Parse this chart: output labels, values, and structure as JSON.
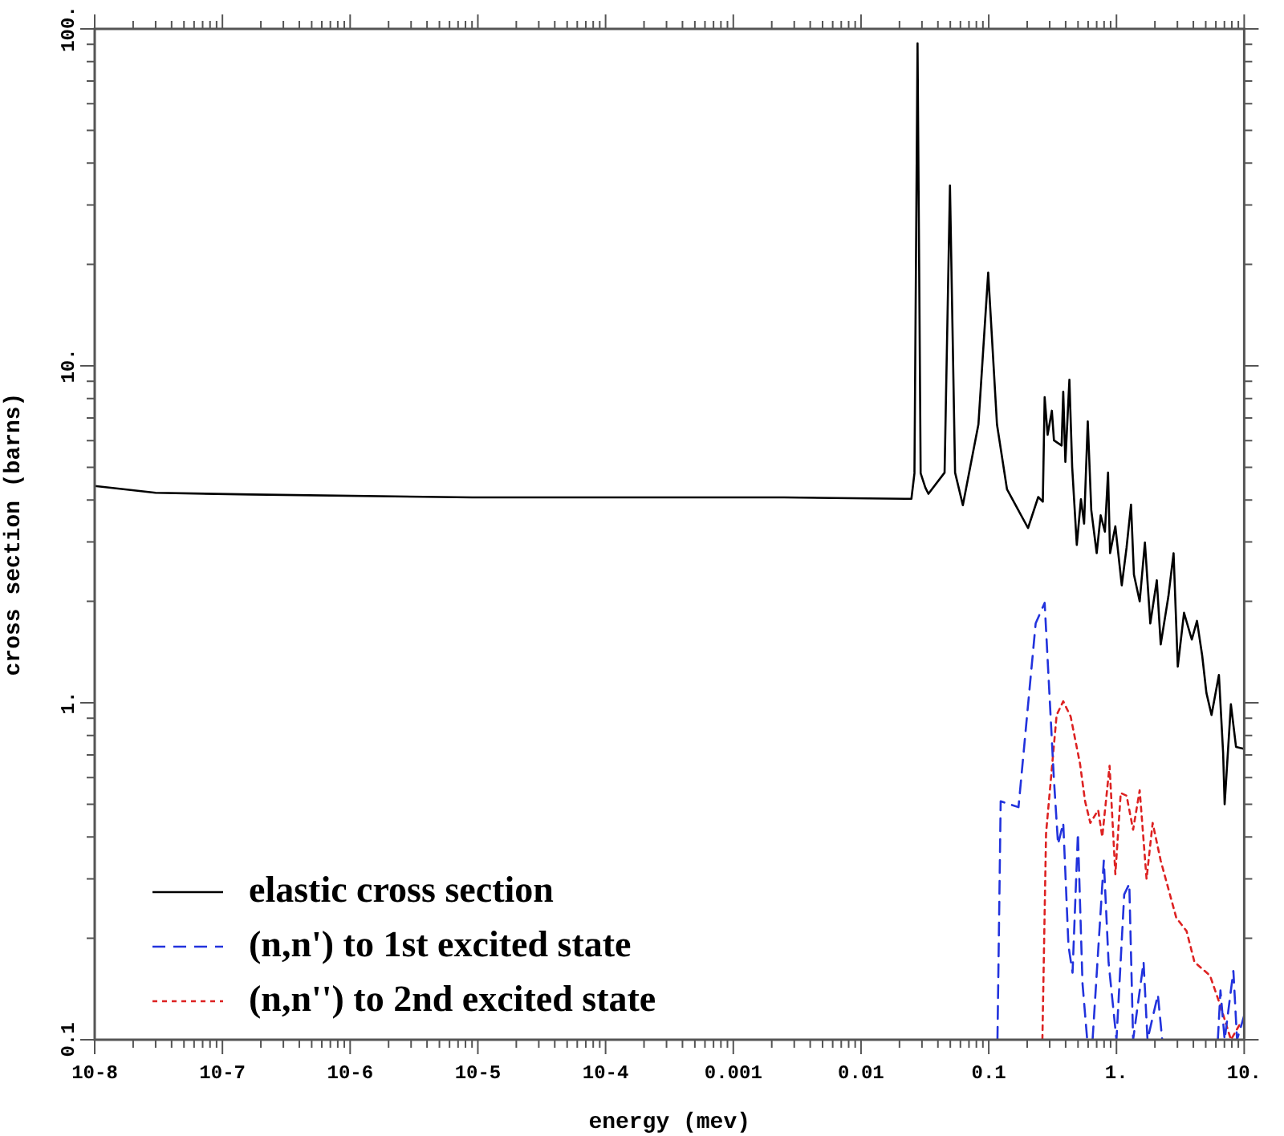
{
  "chart_data": {
    "type": "line",
    "xlabel": "energy (mev)",
    "ylabel": "cross section (barns)",
    "log": "xy",
    "grid": false,
    "legend": "bottom left",
    "marker": "none",
    "xlim": [
      1e-08,
      10
    ],
    "ylim": [
      0.1,
      100
    ],
    "xticks": [
      {
        "value": 1e-08,
        "label": "10-8"
      },
      {
        "value": 2e-08,
        "label": null
      },
      {
        "value": 3e-08,
        "label": null
      },
      {
        "value": 4e-08,
        "label": null
      },
      {
        "value": 5e-08,
        "label": null
      },
      {
        "value": 6e-08,
        "label": null
      },
      {
        "value": 7e-08,
        "label": null
      },
      {
        "value": 8e-08,
        "label": null
      },
      {
        "value": 9e-08,
        "label": null
      },
      {
        "value": 1e-07,
        "label": "10-7"
      },
      {
        "value": 2e-07,
        "label": null
      },
      {
        "value": 3e-07,
        "label": null
      },
      {
        "value": 4e-07,
        "label": null
      },
      {
        "value": 5e-07,
        "label": null
      },
      {
        "value": 6e-07,
        "label": null
      },
      {
        "value": 7e-07,
        "label": null
      },
      {
        "value": 8e-07,
        "label": null
      },
      {
        "value": 9e-07,
        "label": null
      },
      {
        "value": 1e-06,
        "label": "10-6"
      },
      {
        "value": 2e-06,
        "label": null
      },
      {
        "value": 3e-06,
        "label": null
      },
      {
        "value": 4e-06,
        "label": null
      },
      {
        "value": 5e-06,
        "label": null
      },
      {
        "value": 6e-06,
        "label": null
      },
      {
        "value": 7e-06,
        "label": null
      },
      {
        "value": 8e-06,
        "label": null
      },
      {
        "value": 9e-06,
        "label": null
      },
      {
        "value": 1e-05,
        "label": "10-5"
      },
      {
        "value": 2e-05,
        "label": null
      },
      {
        "value": 3e-05,
        "label": null
      },
      {
        "value": 4e-05,
        "label": null
      },
      {
        "value": 5e-05,
        "label": null
      },
      {
        "value": 6e-05,
        "label": null
      },
      {
        "value": 7e-05,
        "label": null
      },
      {
        "value": 8e-05,
        "label": null
      },
      {
        "value": 9e-05,
        "label": null
      },
      {
        "value": 0.0001,
        "label": "10-4"
      },
      {
        "value": 0.0002,
        "label": null
      },
      {
        "value": 0.0003,
        "label": null
      },
      {
        "value": 0.0004,
        "label": null
      },
      {
        "value": 0.0005,
        "label": null
      },
      {
        "value": 0.0006,
        "label": null
      },
      {
        "value": 0.0007,
        "label": null
      },
      {
        "value": 0.0008,
        "label": null
      },
      {
        "value": 0.0009,
        "label": null
      },
      {
        "value": 0.001,
        "label": "0.001"
      },
      {
        "value": 0.002,
        "label": null
      },
      {
        "value": 0.003,
        "label": null
      },
      {
        "value": 0.004,
        "label": null
      },
      {
        "value": 0.005,
        "label": null
      },
      {
        "value": 0.006,
        "label": null
      },
      {
        "value": 0.007,
        "label": null
      },
      {
        "value": 0.008,
        "label": null
      },
      {
        "value": 0.009,
        "label": null
      },
      {
        "value": 0.01,
        "label": "0.01"
      },
      {
        "value": 0.02,
        "label": null
      },
      {
        "value": 0.03,
        "label": null
      },
      {
        "value": 0.04,
        "label": null
      },
      {
        "value": 0.05,
        "label": null
      },
      {
        "value": 0.06,
        "label": null
      },
      {
        "value": 0.07,
        "label": null
      },
      {
        "value": 0.08,
        "label": null
      },
      {
        "value": 0.09,
        "label": null
      },
      {
        "value": 0.1,
        "label": "0.1"
      },
      {
        "value": 0.2,
        "label": null
      },
      {
        "value": 0.3,
        "label": null
      },
      {
        "value": 0.4,
        "label": null
      },
      {
        "value": 0.5,
        "label": null
      },
      {
        "value": 0.6,
        "label": null
      },
      {
        "value": 0.7,
        "label": null
      },
      {
        "value": 0.8,
        "label": null
      },
      {
        "value": 0.9,
        "label": null
      },
      {
        "value": 1,
        "label": "1."
      },
      {
        "value": 2,
        "label": null
      },
      {
        "value": 3,
        "label": null
      },
      {
        "value": 4,
        "label": null
      },
      {
        "value": 5,
        "label": null
      },
      {
        "value": 6,
        "label": null
      },
      {
        "value": 7,
        "label": null
      },
      {
        "value": 8,
        "label": null
      },
      {
        "value": 9,
        "label": null
      },
      {
        "value": 10,
        "label": "10."
      }
    ],
    "yticks": [
      {
        "value": 0.1,
        "label": "0.1"
      },
      {
        "value": 0.2,
        "label": null
      },
      {
        "value": 0.3,
        "label": null
      },
      {
        "value": 0.4,
        "label": null
      },
      {
        "value": 0.5,
        "label": null
      },
      {
        "value": 0.6,
        "label": null
      },
      {
        "value": 0.7,
        "label": null
      },
      {
        "value": 0.8,
        "label": null
      },
      {
        "value": 0.9,
        "label": null
      },
      {
        "value": 1,
        "label": "1."
      },
      {
        "value": 2,
        "label": null
      },
      {
        "value": 3,
        "label": null
      },
      {
        "value": 4,
        "label": null
      },
      {
        "value": 5,
        "label": null
      },
      {
        "value": 6,
        "label": null
      },
      {
        "value": 7,
        "label": null
      },
      {
        "value": 8,
        "label": null
      },
      {
        "value": 9,
        "label": null
      },
      {
        "value": 10,
        "label": "10."
      },
      {
        "value": 20,
        "label": null
      },
      {
        "value": 30,
        "label": null
      },
      {
        "value": 40,
        "label": null
      },
      {
        "value": 50,
        "label": null
      },
      {
        "value": 60,
        "label": null
      },
      {
        "value": 70,
        "label": null
      },
      {
        "value": 80,
        "label": null
      },
      {
        "value": 90,
        "label": null
      },
      {
        "value": 100,
        "label": "100."
      }
    ],
    "series": [
      {
        "name": "elastic cross section",
        "color": "#000000",
        "line_style": "solid",
        "x": [
          1e-08,
          3e-08,
          1.7e-07,
          9e-06,
          0.0025,
          0.0221,
          0.0248,
          0.0262,
          0.0277,
          0.0293,
          0.0319,
          0.0337,
          0.0451,
          0.0497,
          0.0545,
          0.0627,
          0.083,
          0.099,
          0.116,
          0.139,
          0.203,
          0.244,
          0.265,
          0.274,
          0.289,
          0.312,
          0.324,
          0.372,
          0.383,
          0.398,
          0.428,
          0.45,
          0.489,
          0.527,
          0.558,
          0.596,
          0.635,
          0.7,
          0.752,
          0.812,
          0.859,
          0.891,
          0.98,
          1.1,
          1.2,
          1.3,
          1.37,
          1.52,
          1.67,
          1.84,
          2.07,
          2.22,
          2.55,
          2.8,
          3.02,
          3.38,
          3.89,
          4.27,
          4.69,
          5.06,
          5.55,
          6.34,
          6.84,
          7.03,
          7.87,
          8.63,
          10
        ],
        "values": [
          4.4,
          4.2,
          4.15,
          4.07,
          4.07,
          4.03,
          4.03,
          4.8,
          90.6,
          4.8,
          4.35,
          4.17,
          4.82,
          34.3,
          4.82,
          3.86,
          6.7,
          18.9,
          6.7,
          4.3,
          3.3,
          4.08,
          3.95,
          8.07,
          6.24,
          7.36,
          6.01,
          5.8,
          8.38,
          5.19,
          9.09,
          5.01,
          2.94,
          4.02,
          3.4,
          6.84,
          3.73,
          2.78,
          3.6,
          3.22,
          4.82,
          2.78,
          3.34,
          2.23,
          2.89,
          3.87,
          2.4,
          2.0,
          2.99,
          1.72,
          2.31,
          1.49,
          2.07,
          2.78,
          1.28,
          1.85,
          1.54,
          1.75,
          1.38,
          1.07,
          0.92,
          1.21,
          0.71,
          0.5,
          0.99,
          0.74,
          0.73
        ]
      },
      {
        "name": "(n,n') to 1st excited state",
        "color": "#2233dd",
        "line_style": "dashed",
        "x": [
          0.117,
          0.124,
          0.171,
          0.233,
          0.274,
          0.324,
          0.349,
          0.383,
          0.421,
          0.453,
          0.499,
          0.542,
          0.59,
          0.65,
          0.796,
          0.867,
          1.0,
          1.15,
          1.26,
          1.35,
          1.63,
          1.75,
          2.11,
          2.28,
          4,
          6.22,
          6.52,
          7.03,
          8.23,
          8.79,
          10
        ],
        "values": [
          0.1,
          0.51,
          0.49,
          1.72,
          1.98,
          0.59,
          0.38,
          0.44,
          0.19,
          0.158,
          0.41,
          0.147,
          0.1,
          0.1,
          0.34,
          0.17,
          0.1,
          0.27,
          0.29,
          0.1,
          0.17,
          0.1,
          0.136,
          0.1,
          null,
          0.1,
          0.14,
          0.1,
          0.16,
          0.1,
          0.118
        ]
      },
      {
        "name": "(n,n'') to 2nd excited state",
        "color": "#dd2222",
        "line_style": "dotted",
        "x": [
          0.263,
          0.281,
          0.34,
          0.383,
          0.438,
          0.518,
          0.568,
          0.624,
          0.719,
          0.774,
          0.883,
          0.98,
          1.08,
          1.2,
          1.35,
          1.52,
          1.72,
          1.92,
          2.22,
          2.94,
          3.54,
          4.08,
          5.4,
          6.52,
          7.87,
          9.49
        ],
        "values": [
          0.1,
          0.41,
          0.92,
          1.01,
          0.91,
          0.66,
          0.51,
          0.44,
          0.48,
          0.4,
          0.65,
          0.31,
          0.54,
          0.53,
          0.42,
          0.55,
          0.3,
          0.44,
          0.34,
          0.23,
          0.21,
          0.17,
          0.155,
          0.126,
          0.1,
          0.113
        ]
      }
    ]
  }
}
